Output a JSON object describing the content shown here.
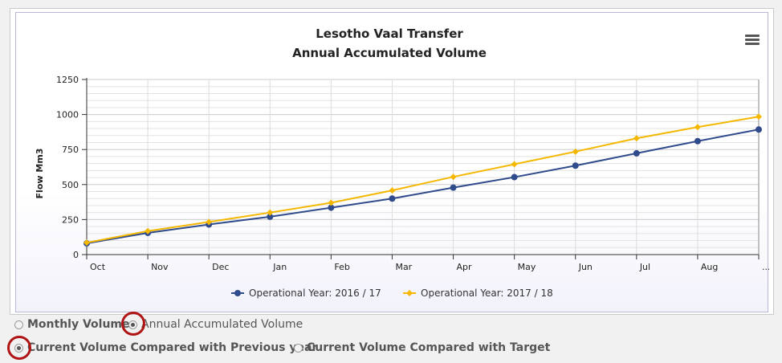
{
  "chart_data": {
    "type": "line",
    "title": "Lesotho Vaal Transfer",
    "subtitle": "Annual Accumulated Volume",
    "ylabel": "Flow Mm3",
    "xlabel": "",
    "categories": [
      "Oct",
      "Nov",
      "Dec",
      "Jan",
      "Feb",
      "Mar",
      "Apr",
      "May",
      "Jun",
      "Jul",
      "Aug",
      "..."
    ],
    "y_ticks": [
      0,
      250,
      500,
      750,
      1000,
      1250
    ],
    "ylim": [
      0,
      1250
    ],
    "grid": true,
    "legend_position": "bottom",
    "series": [
      {
        "name": "Operational Year: 2016 / 17",
        "color": "#2f4b8c",
        "marker": "circle",
        "values": [
          80,
          155,
          215,
          270,
          335,
          400,
          478,
          553,
          635,
          723,
          810,
          893
        ]
      },
      {
        "name": "Operational Year: 2017 / 18",
        "color": "#f5b800",
        "marker": "diamond",
        "values": [
          85,
          168,
          233,
          300,
          370,
          458,
          555,
          645,
          735,
          830,
          910,
          985
        ]
      }
    ]
  },
  "menu_icon": "hamburger-menu-icon",
  "options": {
    "monthly_label": "Monthly Volume",
    "annual_label": "Annual Accumulated Volume",
    "previous_year_label": "Current Volume Compared with Previous year",
    "target_label": "Current Volume Compared with Target",
    "annual_checked": true,
    "previous_year_checked": true
  },
  "colors": {
    "highlight": "#b01414",
    "plot_border": "#333333",
    "grid": "#e3e3e3"
  }
}
